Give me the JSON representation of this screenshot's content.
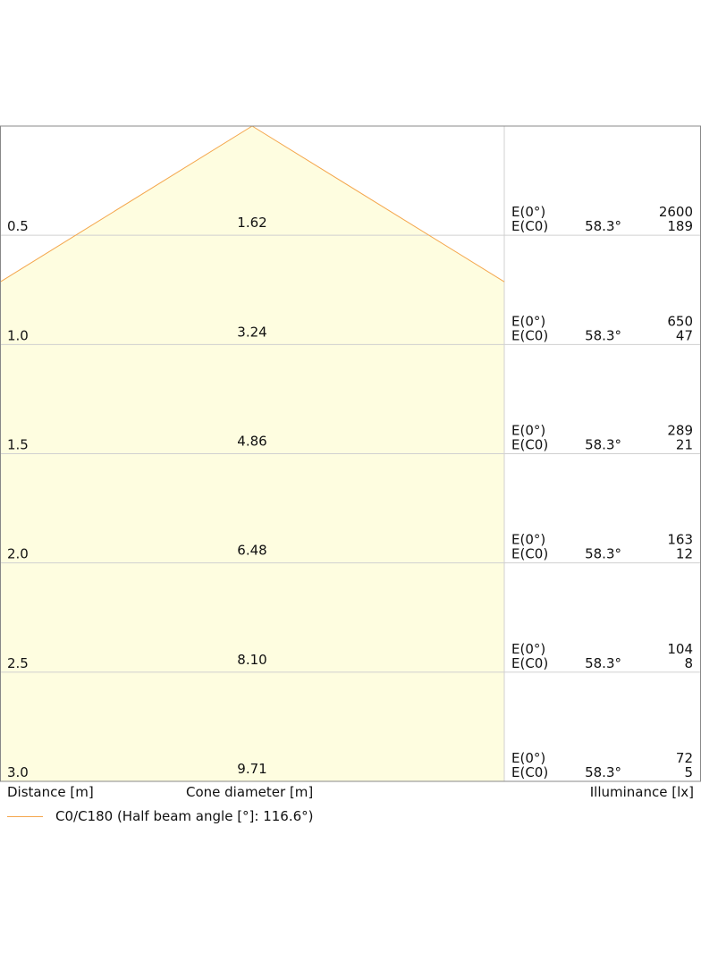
{
  "chart_data": {
    "type": "area",
    "title": "",
    "distances": [
      "0.5",
      "1.0",
      "1.5",
      "2.0",
      "2.5",
      "3.0"
    ],
    "cone_diameters": [
      "1.62",
      "3.24",
      "4.86",
      "6.48",
      "8.10",
      "9.71"
    ],
    "distance_range": [
      0,
      3.0
    ],
    "illuminance": [
      {
        "e0_label": "E(0°)",
        "ec0_label": "E(C0)",
        "angle": "58.3°",
        "e0": "2600",
        "ec0": "189"
      },
      {
        "e0_label": "E(0°)",
        "ec0_label": "E(C0)",
        "angle": "58.3°",
        "e0": "650",
        "ec0": "47"
      },
      {
        "e0_label": "E(0°)",
        "ec0_label": "E(C0)",
        "angle": "58.3°",
        "e0": "289",
        "ec0": "21"
      },
      {
        "e0_label": "E(0°)",
        "ec0_label": "E(C0)",
        "angle": "58.3°",
        "e0": "163",
        "ec0": "12"
      },
      {
        "e0_label": "E(0°)",
        "ec0_label": "E(C0)",
        "angle": "58.3°",
        "e0": "104",
        "ec0": "8"
      },
      {
        "e0_label": "E(0°)",
        "ec0_label": "E(C0)",
        "angle": "58.3°",
        "e0": "72",
        "ec0": "5"
      }
    ],
    "half_beam_angle": 116.6,
    "grid": true,
    "legend_position": "bottom-left",
    "colors": {
      "cone_fill": "#fefde0",
      "cone_edge": "#f4a64c",
      "grid": "#d0d0d0",
      "frame": "#888888"
    }
  },
  "footer": {
    "distance_label": "Distance [m]",
    "cone_label": "Cone diameter [m]",
    "illuminance_label": "Illuminance [lx]"
  },
  "legend": {
    "label": "C0/C180 (Half beam angle [°]: 116.6°)"
  }
}
